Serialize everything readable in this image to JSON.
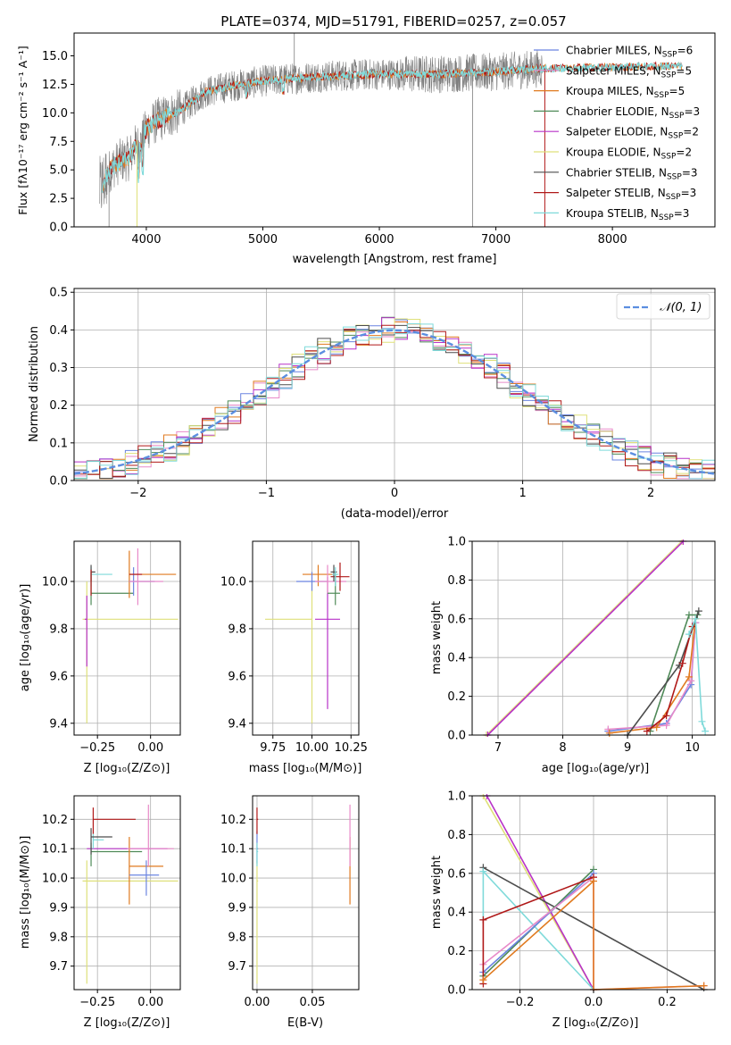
{
  "figure": {
    "title": "PLATE=0374, MJD=51791, FIBERID=0257, z=0.057"
  },
  "colors": {
    "Chabrier MILES": "#6a84e0",
    "Salpeter MILES": "#e88ac9",
    "Kroupa MILES": "#e07a1f",
    "Chabrier ELODIE": "#4f8a58",
    "Salpeter ELODIE": "#b832c8",
    "Kroupa ELODIE": "#dfe07a",
    "Chabrier STELIB": "#4d4d4d",
    "Salpeter STELIB": "#b01818",
    "Kroupa STELIB": "#7fdada",
    "data": "#7f7f7f",
    "gauss": "#5b8ee0"
  },
  "chart_data": [
    {
      "id": "spectrum",
      "type": "line",
      "title": "PLATE=0374, MJD=51791, FIBERID=0257, z=0.057",
      "xlabel": "wavelength [Angstrom, rest frame]",
      "ylabel": "Flux [fλ10⁻¹⁷ erg cm⁻² s⁻¹ A⁻¹]",
      "xlim": [
        3380,
        8880
      ],
      "ylim": [
        0,
        17
      ],
      "xticks": [
        4000,
        5000,
        6000,
        7000,
        8000
      ],
      "yticks": [
        0.0,
        2.5,
        5.0,
        7.5,
        10.0,
        12.5,
        15.0
      ],
      "ytick_labels": [
        "0.0",
        "2.5",
        "5.0",
        "7.5",
        "10.0",
        "12.5",
        "15.0"
      ],
      "continuum": {
        "x": [
          3600,
          3700,
          3780,
          3850,
          3900,
          3950,
          4000,
          4100,
          4200,
          4300,
          4400,
          4500,
          4700,
          5000,
          5500,
          6000,
          6500,
          7000,
          7400,
          8000,
          8500
        ],
        "y": [
          3.2,
          5.2,
          5.8,
          6.0,
          7.0,
          7.2,
          8.6,
          9.4,
          9.8,
          10.2,
          11.0,
          11.8,
          12.3,
          12.8,
          13.2,
          13.4,
          13.4,
          13.6,
          13.9,
          14.0,
          14.1
        ]
      },
      "legend": [
        {
          "label": "Chabrier MILES, N",
          "sub": "SSP",
          "suffix": "=6",
          "color": "#6a84e0"
        },
        {
          "label": "Salpeter MILES, N",
          "sub": "SSP",
          "suffix": "=5",
          "color": "#e88ac9"
        },
        {
          "label": "Kroupa MILES, N",
          "sub": "SSP",
          "suffix": "=5",
          "color": "#e07a1f"
        },
        {
          "label": "Chabrier ELODIE, N",
          "sub": "SSP",
          "suffix": "=3",
          "color": "#4f8a58"
        },
        {
          "label": "Salpeter ELODIE, N",
          "sub": "SSP",
          "suffix": "=2",
          "color": "#b832c8"
        },
        {
          "label": "Kroupa ELODIE, N",
          "sub": "SSP",
          "suffix": "=2",
          "color": "#dfe07a"
        },
        {
          "label": "Chabrier STELIB, N",
          "sub": "SSP",
          "suffix": "=3",
          "color": "#4d4d4d"
        },
        {
          "label": "Salpeter STELIB, N",
          "sub": "SSP",
          "suffix": "=3",
          "color": "#b01818"
        },
        {
          "label": "Kroupa STELIB, N",
          "sub": "SSP",
          "suffix": "=3",
          "color": "#7fdada"
        }
      ],
      "legend_position": "upper-right",
      "grid": false
    },
    {
      "id": "residuals",
      "type": "line",
      "xlabel": "(data-model)/error",
      "ylabel": "Normed distribution",
      "xlim": [
        -2.5,
        2.5
      ],
      "ylim": [
        0,
        0.51
      ],
      "xticks": [
        -2,
        -1,
        0,
        1,
        2
      ],
      "xtick_labels": [
        "−2",
        "−1",
        "0",
        "1",
        "2"
      ],
      "yticks": [
        0.0,
        0.1,
        0.2,
        0.3,
        0.4,
        0.5
      ],
      "ytick_labels": [
        "0.0",
        "0.1",
        "0.2",
        "0.3",
        "0.4",
        "0.5"
      ],
      "legend": "𝒩(0, 1)",
      "legend_position": "upper-right",
      "grid": true
    },
    {
      "id": "age-vs-z",
      "type": "scatter",
      "xlabel": "Z [log₁₀(Z/Z⊙)]",
      "ylabel": "age  [log₁₀(age/yr)]",
      "xlim": [
        -0.36,
        0.14
      ],
      "ylim": [
        9.35,
        10.17
      ],
      "xticks": [
        -0.25,
        0.0
      ],
      "xtick_labels": [
        "−0.25",
        "0.00"
      ],
      "yticks": [
        9.4,
        9.6,
        9.8,
        10.0
      ],
      "ytick_labels": [
        "9.4",
        "9.6",
        "9.8",
        "10.0"
      ],
      "grid": true
    },
    {
      "id": "age-vs-mass",
      "type": "scatter",
      "xlabel": "mass [log₁₀(M/M⊙)]",
      "xlim": [
        9.62,
        10.3
      ],
      "ylim": [
        9.35,
        10.17
      ],
      "xticks": [
        9.75,
        10.0,
        10.25
      ],
      "xtick_labels": [
        "9.75",
        "10.00",
        "10.25"
      ],
      "yticks": [
        9.4,
        9.6,
        9.8,
        10.0
      ],
      "ytick_labels": [
        "9.4",
        "9.6",
        "9.8",
        "10.0"
      ],
      "grid": true
    },
    {
      "id": "mass-weight-vs-age",
      "type": "line",
      "xlabel": "age  [log₁₀(age/yr)]",
      "ylabel": "mass weight",
      "xlim": [
        6.6,
        10.35
      ],
      "ylim": [
        0,
        1.0
      ],
      "xticks": [
        7,
        8,
        9,
        10
      ],
      "xtick_labels": [
        "7",
        "8",
        "9",
        "10"
      ],
      "yticks": [
        0.0,
        0.2,
        0.4,
        0.6,
        0.8,
        1.0
      ],
      "ytick_labels": [
        "0.0",
        "0.2",
        "0.4",
        "0.6",
        "0.8",
        "1.0"
      ],
      "series": [
        {
          "color": "#dfe07a",
          "x": [
            6.82,
            9.84
          ],
          "y": [
            0.0,
            1.0
          ]
        },
        {
          "color": "#b832c8",
          "x": [
            6.84,
            9.86
          ],
          "y": [
            0.0,
            1.0
          ]
        },
        {
          "color": "#6a84e0",
          "x": [
            8.7,
            9.6,
            9.98,
            10.05
          ],
          "y": [
            0.02,
            0.06,
            0.26,
            0.58
          ]
        },
        {
          "color": "#e88ac9",
          "x": [
            8.7,
            9.6,
            9.98,
            10.05
          ],
          "y": [
            0.03,
            0.05,
            0.28,
            0.58
          ]
        },
        {
          "color": "#e07a1f",
          "x": [
            8.72,
            9.45,
            9.95,
            10.05
          ],
          "y": [
            0.01,
            0.04,
            0.3,
            0.6
          ]
        },
        {
          "color": "#4f8a58",
          "x": [
            9.35,
            9.95,
            10.08
          ],
          "y": [
            0.02,
            0.62,
            0.62
          ]
        },
        {
          "color": "#4d4d4d",
          "x": [
            9.0,
            9.8,
            10.1
          ],
          "y": [
            0.0,
            0.36,
            0.64
          ]
        },
        {
          "color": "#b01818",
          "x": [
            9.3,
            9.6,
            9.85,
            10.0
          ],
          "y": [
            0.02,
            0.1,
            0.37,
            0.56
          ]
        },
        {
          "color": "#7fdada",
          "x": [
            9.95,
            10.05,
            10.15,
            10.2
          ],
          "y": [
            0.52,
            0.6,
            0.07,
            0.02
          ]
        }
      ],
      "grid": true
    },
    {
      "id": "mass-vs-z",
      "type": "scatter",
      "xlabel": "Z [log₁₀(Z/Z⊙)]",
      "ylabel": "mass [log₁₀(M/M⊙)]",
      "xlim": [
        -0.36,
        0.14
      ],
      "ylim": [
        9.62,
        10.28
      ],
      "xticks": [
        -0.25,
        0.0
      ],
      "xtick_labels": [
        "−0.25",
        "0.00"
      ],
      "yticks": [
        9.7,
        9.8,
        9.9,
        10.0,
        10.1,
        10.2
      ],
      "ytick_labels": [
        "9.7",
        "9.8",
        "9.9",
        "10.0",
        "10.1",
        "10.2"
      ],
      "grid": true
    },
    {
      "id": "mass-vs-ebv",
      "type": "scatter",
      "xlabel": "E(B-V)",
      "xlim": [
        -0.004,
        0.092
      ],
      "ylim": [
        9.62,
        10.28
      ],
      "xticks": [
        0.0,
        0.05
      ],
      "xtick_labels": [
        "0.00",
        "0.05"
      ],
      "yticks": [
        9.7,
        9.8,
        9.9,
        10.0,
        10.1,
        10.2
      ],
      "ytick_labels": [
        "9.7",
        "9.8",
        "9.9",
        "10.0",
        "10.1",
        "10.2"
      ],
      "grid": true
    },
    {
      "id": "mass-weight-vs-z",
      "type": "line",
      "xlabel": "Z [log₁₀(Z/Z⊙)]",
      "ylabel": "mass weight",
      "xlim": [
        -0.33,
        0.33
      ],
      "ylim": [
        0,
        1.0
      ],
      "xticks": [
        -0.2,
        0.0,
        0.2
      ],
      "xtick_labels": [
        "−0.2",
        "0.0",
        "0.2"
      ],
      "yticks": [
        0.0,
        0.2,
        0.4,
        0.6,
        0.8,
        1.0
      ],
      "ytick_labels": [
        "0.0",
        "0.2",
        "0.4",
        "0.6",
        "0.8",
        "1.0"
      ],
      "series": [
        {
          "color": "#dfe07a",
          "x": [
            -0.3,
            0.0
          ],
          "y": [
            1.0,
            0.0
          ]
        },
        {
          "color": "#b832c8",
          "x": [
            -0.29,
            0.0
          ],
          "y": [
            1.0,
            0.0
          ]
        },
        {
          "color": "#4d4d4d",
          "x": [
            -0.3,
            0.3
          ],
          "y": [
            0.63,
            0.0
          ]
        },
        {
          "color": "#7fdada",
          "x": [
            -0.3,
            -0.3,
            0.0,
            0.0
          ],
          "y": [
            0.36,
            0.61,
            0.0,
            0.0
          ]
        },
        {
          "color": "#4f8a58",
          "x": [
            -0.3,
            0.0
          ],
          "y": [
            0.07,
            0.62
          ]
        },
        {
          "color": "#6a84e0",
          "x": [
            -0.3,
            0.0
          ],
          "y": [
            0.09,
            0.6
          ]
        },
        {
          "color": "#e88ac9",
          "x": [
            -0.3,
            0.0,
            0.0,
            0.3
          ],
          "y": [
            0.13,
            0.58,
            0.0,
            0.02
          ]
        },
        {
          "color": "#b01818",
          "x": [
            -0.3,
            -0.3,
            0.0
          ],
          "y": [
            0.03,
            0.36,
            0.58
          ]
        },
        {
          "color": "#e07a1f",
          "x": [
            -0.3,
            0.0,
            0.0,
            0.3
          ],
          "y": [
            0.05,
            0.56,
            0.0,
            0.02
          ]
        }
      ],
      "grid": true
    }
  ]
}
